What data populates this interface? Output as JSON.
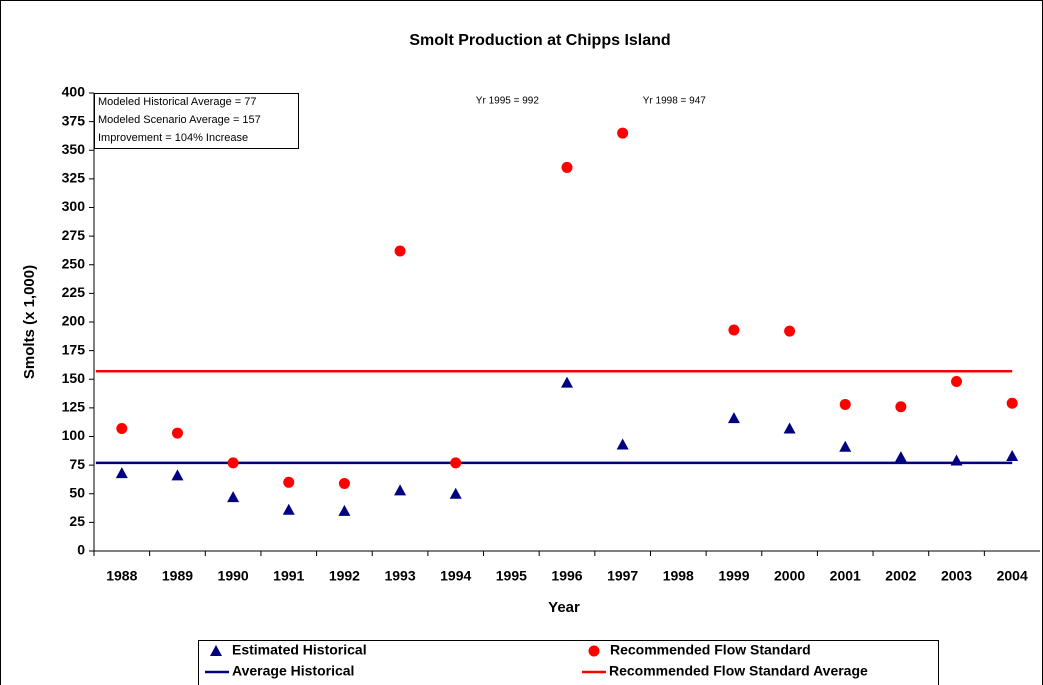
{
  "chart_data": {
    "type": "scatter",
    "title": "Smolt Production at Chipps Island",
    "x_label": "Year",
    "y_label": "Smolts (x 1,000)",
    "categories": [
      "1988",
      "1989",
      "1990",
      "1991",
      "1992",
      "1993",
      "1994",
      "1995",
      "1996",
      "1997",
      "1998",
      "1999",
      "2000",
      "2001",
      "2002",
      "2003",
      "2004"
    ],
    "series": [
      {
        "name": "Estimated Historical",
        "color": "#000080",
        "marker": "triangle",
        "values": [
          68,
          66,
          47,
          36,
          35,
          53,
          50,
          null,
          147,
          93,
          null,
          116,
          107,
          91,
          82,
          79,
          83
        ]
      },
      {
        "name": "Recommended Flow Standard",
        "color": "#ff0000",
        "marker": "circle",
        "values": [
          107,
          103,
          77,
          60,
          59,
          262,
          77,
          null,
          335,
          365,
          null,
          193,
          192,
          128,
          126,
          148,
          129
        ]
      }
    ],
    "averages": [
      {
        "name": "Average Historical",
        "color": "#000080",
        "value": 77
      },
      {
        "name": "Recommended Flow Standard Average",
        "color": "#ff0000",
        "value": 157
      }
    ],
    "info_box": [
      "Modeled Historical Average = 77",
      "Modeled Scenario Average = 157",
      "Improvement = 104% Increase"
    ],
    "notes": [
      {
        "category": "1995",
        "text": "Yr 1995 = 992"
      },
      {
        "category": "1998",
        "text": "Yr 1998 = 947"
      }
    ],
    "ylim": [
      0,
      400
    ],
    "yticks": [
      0,
      25,
      50,
      75,
      100,
      125,
      150,
      175,
      200,
      225,
      250,
      275,
      300,
      325,
      350,
      375,
      400
    ],
    "grid": false
  }
}
